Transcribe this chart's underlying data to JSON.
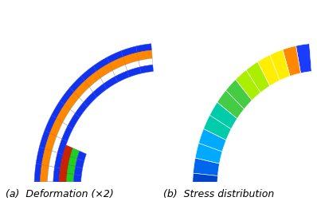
{
  "figsize": [
    3.98,
    2.52
  ],
  "dpi": 100,
  "bg_color": "#ffffff",
  "label_a": "(a)  Deformation (×2)",
  "label_b": "(b)  Stress distribution",
  "label_fontsize": 9
}
